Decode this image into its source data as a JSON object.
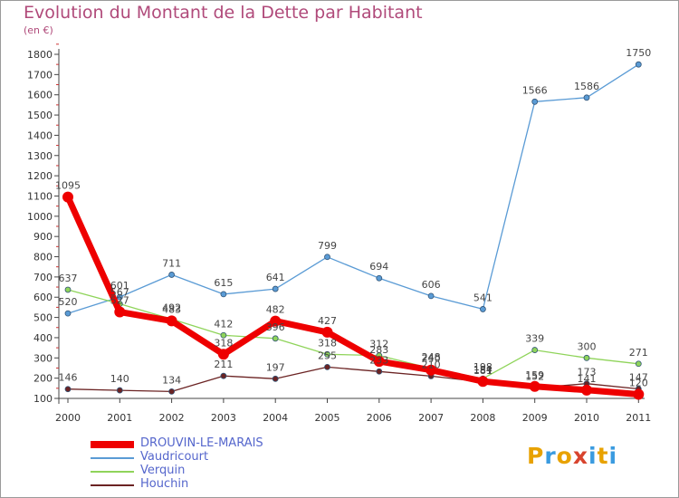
{
  "title": "Evolution du Montant de la Dette par Habitant",
  "subtitle": "(en €)",
  "logo": {
    "letters": [
      "P",
      "r",
      "o",
      "x",
      "i",
      "t",
      "i"
    ],
    "colors": [
      "#e8a200",
      "#3a9be0",
      "#e8a200",
      "#d8442e",
      "#3a9be0",
      "#e8a200",
      "#3a9be0"
    ]
  },
  "chart_data": {
    "type": "line",
    "x": [
      "2000",
      "2001",
      "2002",
      "2003",
      "2004",
      "2005",
      "2006",
      "2007",
      "2008",
      "2009",
      "2010",
      "2011"
    ],
    "ylim": [
      100,
      1800
    ],
    "yticks": [
      100,
      200,
      300,
      400,
      500,
      600,
      700,
      800,
      900,
      1000,
      1100,
      1200,
      1300,
      1400,
      1500,
      1600,
      1700,
      1800
    ],
    "grid": false,
    "legend_position": "bottom-left",
    "series": [
      {
        "name": "DROUVIN-LE-MARAIS",
        "color": "#ee0000",
        "values": [
          1095,
          527,
          483,
          318,
          482,
          427,
          283,
          240,
          184,
          159,
          141,
          120
        ]
      },
      {
        "name": "Vaudricourt",
        "color": "#5a9bd5",
        "values": [
          520,
          601,
          711,
          615,
          641,
          799,
          694,
          606,
          541,
          1566,
          1586,
          1750
        ]
      },
      {
        "name": "Verquin",
        "color": "#8fd45a",
        "values": [
          637,
          567,
          492,
          412,
          396,
          318,
          312,
          248,
          198,
          339,
          300,
          271
        ]
      },
      {
        "name": "Houchin",
        "color": "#6b2323",
        "values": [
          146,
          140,
          134,
          211,
          197,
          255,
          233,
          210,
          181,
          152,
          173,
          147
        ]
      }
    ]
  }
}
